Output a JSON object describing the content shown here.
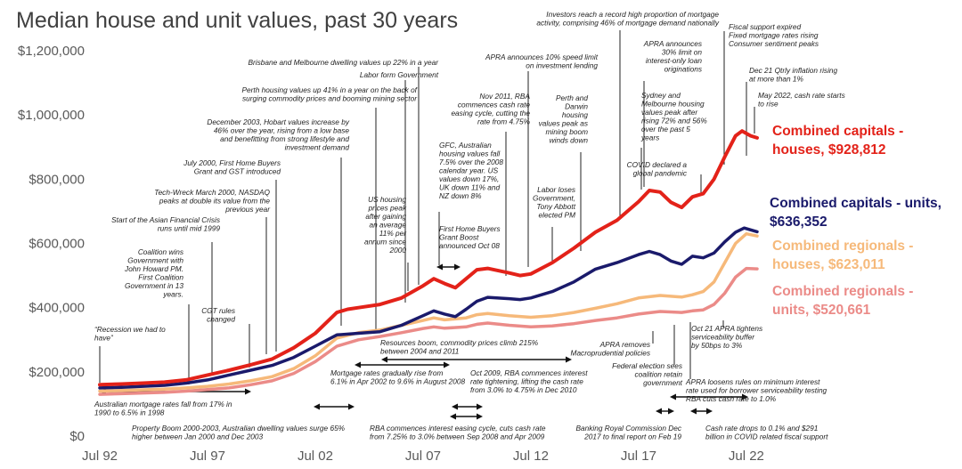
{
  "colors": {
    "houses_capitals": "#e32219",
    "units_capitals": "#1a1a6b",
    "houses_regionals": "#f6b97a",
    "units_regionals": "#eb8b88"
  },
  "chart_data": {
    "type": "line",
    "title": "Median house and unit values, past 30 years",
    "xlabel": "",
    "ylabel": "",
    "xticks": [
      "Jul 92",
      "Jul 97",
      "Jul 02",
      "Jul 07",
      "Jul 12",
      "Jul 17",
      "Jul 22"
    ],
    "yticks": [
      "$0",
      "$200,000",
      "$400,000",
      "$600,000",
      "$800,000",
      "$1,000,000",
      "$1,200,000"
    ],
    "xlim": [
      1992.5,
      2023.0
    ],
    "ylim": [
      0,
      1200000
    ],
    "grid": false,
    "series": [
      {
        "name": "Combined capitals - houses, $928,812",
        "color_key": "houses_capitals",
        "points": [
          [
            1992.5,
            160000
          ],
          [
            1993.5,
            162000
          ],
          [
            1994.5,
            165000
          ],
          [
            1995.5,
            168000
          ],
          [
            1996.5,
            175000
          ],
          [
            1997.5,
            190000
          ],
          [
            1998.5,
            205000
          ],
          [
            1999.5,
            222000
          ],
          [
            2000.5,
            240000
          ],
          [
            2001.5,
            275000
          ],
          [
            2002.5,
            320000
          ],
          [
            2003.5,
            385000
          ],
          [
            2004.0,
            395000
          ],
          [
            2004.5,
            400000
          ],
          [
            2005.5,
            410000
          ],
          [
            2006.5,
            430000
          ],
          [
            2007.5,
            468000
          ],
          [
            2008.0,
            490000
          ],
          [
            2008.5,
            475000
          ],
          [
            2009.0,
            462000
          ],
          [
            2009.5,
            490000
          ],
          [
            2010.0,
            518000
          ],
          [
            2010.5,
            522000
          ],
          [
            2011.5,
            508000
          ],
          [
            2012.0,
            500000
          ],
          [
            2012.5,
            505000
          ],
          [
            2013.5,
            540000
          ],
          [
            2014.5,
            585000
          ],
          [
            2015.5,
            635000
          ],
          [
            2016.5,
            672000
          ],
          [
            2017.5,
            730000
          ],
          [
            2018.0,
            765000
          ],
          [
            2018.5,
            760000
          ],
          [
            2019.0,
            728000
          ],
          [
            2019.5,
            712000
          ],
          [
            2020.0,
            745000
          ],
          [
            2020.5,
            755000
          ],
          [
            2021.0,
            800000
          ],
          [
            2021.5,
            870000
          ],
          [
            2022.0,
            935000
          ],
          [
            2022.3,
            950000
          ],
          [
            2022.7,
            935000
          ],
          [
            2023.0,
            928812
          ]
        ]
      },
      {
        "name": "Combined capitals - units, $636,352",
        "color_key": "units_capitals",
        "points": [
          [
            1992.5,
            150000
          ],
          [
            1993.5,
            152000
          ],
          [
            1994.5,
            155000
          ],
          [
            1995.5,
            158000
          ],
          [
            1996.5,
            165000
          ],
          [
            1997.5,
            175000
          ],
          [
            1998.5,
            190000
          ],
          [
            1999.5,
            205000
          ],
          [
            2000.5,
            220000
          ],
          [
            2001.5,
            245000
          ],
          [
            2002.5,
            280000
          ],
          [
            2003.5,
            315000
          ],
          [
            2004.5,
            320000
          ],
          [
            2005.5,
            325000
          ],
          [
            2006.5,
            345000
          ],
          [
            2007.5,
            375000
          ],
          [
            2008.0,
            390000
          ],
          [
            2008.5,
            380000
          ],
          [
            2009.0,
            372000
          ],
          [
            2009.5,
            395000
          ],
          [
            2010.0,
            420000
          ],
          [
            2010.5,
            432000
          ],
          [
            2011.5,
            428000
          ],
          [
            2012.0,
            425000
          ],
          [
            2012.5,
            430000
          ],
          [
            2013.5,
            450000
          ],
          [
            2014.5,
            480000
          ],
          [
            2015.5,
            520000
          ],
          [
            2016.5,
            540000
          ],
          [
            2017.5,
            565000
          ],
          [
            2018.0,
            575000
          ],
          [
            2018.5,
            565000
          ],
          [
            2019.0,
            545000
          ],
          [
            2019.5,
            535000
          ],
          [
            2020.0,
            560000
          ],
          [
            2020.5,
            555000
          ],
          [
            2021.0,
            570000
          ],
          [
            2021.5,
            605000
          ],
          [
            2022.0,
            635000
          ],
          [
            2022.4,
            648000
          ],
          [
            2023.0,
            636352
          ]
        ]
      },
      {
        "name": "Combined regionals - houses, $623,011",
        "color_key": "houses_regionals",
        "points": [
          [
            1992.5,
            140000
          ],
          [
            1993.5,
            142000
          ],
          [
            1994.5,
            144000
          ],
          [
            1995.5,
            146000
          ],
          [
            1996.5,
            150000
          ],
          [
            1997.5,
            155000
          ],
          [
            1998.5,
            162000
          ],
          [
            1999.5,
            172000
          ],
          [
            2000.5,
            185000
          ],
          [
            2001.5,
            210000
          ],
          [
            2002.5,
            250000
          ],
          [
            2003.5,
            305000
          ],
          [
            2004.5,
            322000
          ],
          [
            2005.5,
            330000
          ],
          [
            2006.5,
            345000
          ],
          [
            2007.5,
            360000
          ],
          [
            2008.0,
            368000
          ],
          [
            2008.5,
            362000
          ],
          [
            2009.5,
            368000
          ],
          [
            2010.0,
            378000
          ],
          [
            2010.5,
            382000
          ],
          [
            2011.5,
            375000
          ],
          [
            2012.5,
            370000
          ],
          [
            2013.5,
            375000
          ],
          [
            2014.5,
            385000
          ],
          [
            2015.5,
            398000
          ],
          [
            2016.5,
            412000
          ],
          [
            2017.5,
            430000
          ],
          [
            2018.5,
            438000
          ],
          [
            2019.5,
            433000
          ],
          [
            2020.0,
            440000
          ],
          [
            2020.5,
            450000
          ],
          [
            2021.0,
            480000
          ],
          [
            2021.5,
            540000
          ],
          [
            2022.0,
            600000
          ],
          [
            2022.5,
            630000
          ],
          [
            2023.0,
            623011
          ]
        ]
      },
      {
        "name": "Combined regionals - units, $520,661",
        "color_key": "units_regionals",
        "points": [
          [
            1992.5,
            130000
          ],
          [
            1993.5,
            132000
          ],
          [
            1994.5,
            134000
          ],
          [
            1995.5,
            136000
          ],
          [
            1996.5,
            140000
          ],
          [
            1997.5,
            145000
          ],
          [
            1998.5,
            150000
          ],
          [
            1999.5,
            160000
          ],
          [
            2000.5,
            172000
          ],
          [
            2001.5,
            195000
          ],
          [
            2002.5,
            232000
          ],
          [
            2003.5,
            280000
          ],
          [
            2004.5,
            300000
          ],
          [
            2005.5,
            310000
          ],
          [
            2006.5,
            322000
          ],
          [
            2007.5,
            335000
          ],
          [
            2008.0,
            340000
          ],
          [
            2008.5,
            336000
          ],
          [
            2009.5,
            340000
          ],
          [
            2010.0,
            348000
          ],
          [
            2010.5,
            352000
          ],
          [
            2011.5,
            345000
          ],
          [
            2012.5,
            340000
          ],
          [
            2013.5,
            343000
          ],
          [
            2014.5,
            350000
          ],
          [
            2015.5,
            360000
          ],
          [
            2016.5,
            368000
          ],
          [
            2017.5,
            380000
          ],
          [
            2018.5,
            388000
          ],
          [
            2019.5,
            385000
          ],
          [
            2020.0,
            390000
          ],
          [
            2020.5,
            393000
          ],
          [
            2021.0,
            410000
          ],
          [
            2021.5,
            445000
          ],
          [
            2022.0,
            495000
          ],
          [
            2022.5,
            522000
          ],
          [
            2023.0,
            520661
          ]
        ]
      }
    ],
    "legend": [
      {
        "lines": [
          "Combined capitals -",
          "houses, $928,812"
        ],
        "color_key": "houses_capitals"
      },
      {
        "lines": [
          "Combined capitals - units,",
          "$636,352"
        ],
        "color_key": "units_capitals"
      },
      {
        "lines": [
          "Combined regionals -",
          "houses, $623,011"
        ],
        "color_key": "houses_regionals"
      },
      {
        "lines": [
          "Combined regionals -",
          "units, $520,661"
        ],
        "color_key": "units_regionals"
      }
    ],
    "annotations": [
      {
        "lines": [
          "“Recession we had to",
          "have”"
        ]
      },
      {
        "lines": [
          "Australian mortgage rates fall from 17% in",
          "1990 to 6.5% in 1998"
        ]
      },
      {
        "lines": [
          "Coalition wins",
          "Government with",
          "John Howard PM.",
          "First Coalition",
          "Government in 13",
          "years."
        ]
      },
      {
        "lines": [
          "Start of the Asian Financial Crisis",
          "runs until mid 1999"
        ]
      },
      {
        "lines": [
          "CGT rules",
          "changed"
        ]
      },
      {
        "lines": [
          "Tech-Wreck March 2000, NASDAQ",
          "peaks at double its value from the",
          "previous year"
        ]
      },
      {
        "lines": [
          "July 2000, First Home Buyers",
          "Grant and GST introduced"
        ]
      },
      {
        "lines": [
          "December 2003, Hobart values increase by",
          "46% over the year, rising from a low base",
          "and benefitting from strong lifestyle and",
          "investment demand"
        ]
      },
      {
        "lines": [
          "Perth housing values up 41% in a year on the back of",
          "surging commodity prices and booming mining sector"
        ]
      },
      {
        "lines": [
          "Labor form Government"
        ]
      },
      {
        "lines": [
          "Brisbane and Melbourne dwelling values up 22% in a year"
        ]
      },
      {
        "lines": [
          "US housing",
          "prices peak",
          "after gaining",
          "an average",
          "11% per",
          "annum since",
          "2000"
        ]
      },
      {
        "lines": [
          "GFC, Australian",
          "housing values fall",
          "7.5% over the 2008",
          "calendar year.  US",
          "values down 17%,",
          "UK down 11% and",
          "NZ down 8%"
        ]
      },
      {
        "lines": [
          "First Home Buyers",
          "Grant Boost",
          "announced Oct 08"
        ]
      },
      {
        "lines": [
          "Nov 2011, RBA",
          "commences cash rate",
          "easing cycle, cutting the",
          "rate from 4.75%"
        ]
      },
      {
        "lines": [
          "APRA announces 10% speed limit",
          "on investment lending"
        ]
      },
      {
        "lines": [
          "Perth and",
          "Darwin",
          "housing",
          "values peak as",
          "mining boom",
          "winds down"
        ]
      },
      {
        "lines": [
          "Labor loses",
          "Government,",
          "Tony Abbott",
          "elected PM"
        ]
      },
      {
        "lines": [
          "Investors reach a record high proportion of mortgage",
          "activity, comprising 46% of mortgage demand nationally"
        ]
      },
      {
        "lines": [
          "APRA announces",
          "30% limit on",
          "interest-only loan",
          "originations"
        ]
      },
      {
        "lines": [
          "Sydney and",
          "Melbourne housing",
          "values peak after",
          "rising 72% and 56%",
          "over the past 5",
          "years"
        ]
      },
      {
        "lines": [
          "COVID declared a",
          "global pandemic"
        ]
      },
      {
        "lines": [
          "Fiscal support expired",
          "Fixed mortgage rates rising",
          "Consumer sentiment peaks"
        ]
      },
      {
        "lines": [
          "Dec 21 Qtrly inflation rising",
          "at more than 1%"
        ]
      },
      {
        "lines": [
          "May 2022, cash rate starts",
          "to rise"
        ]
      },
      {
        "lines": [
          "Resources boom, commodity prices climb 215%",
          "between 2004 and 2011"
        ]
      },
      {
        "lines": [
          "Mortgage rates gradually rise from",
          "6.1% in Apr 2002 to 9.6% in August 2008"
        ]
      },
      {
        "lines": [
          "Oct 2009, RBA commences interest",
          "rate tightening, lifting the cash rate",
          "from 3.0% to 4.75% in Dec 2010"
        ]
      },
      {
        "lines": [
          "APRA removes",
          "Macroprudential policies"
        ]
      },
      {
        "lines": [
          "Federal election sees",
          "coalition retain",
          "government"
        ]
      },
      {
        "lines": [
          "APRA loosens rules on minimum interest",
          "rate used for borrower serviceability testing",
          "RBA cuts cash rate to 1.0%"
        ]
      },
      {
        "lines": [
          "Oct 21 APRA tightens",
          "serviceability buffer",
          "by 50bps to 3%"
        ]
      },
      {
        "lines": [
          "Property Boom 2000-2003, Australian dwelling values surge 65%",
          "higher between Jan 2000 and Dec 2003"
        ]
      },
      {
        "lines": [
          "RBA commences interest easing cycle, cuts cash rate",
          "from 7.25% to 3.0% between Sep 2008 and Apr 2009"
        ]
      },
      {
        "lines": [
          "Banking Royal Commission Dec",
          "2017 to final report on Feb 19"
        ]
      },
      {
        "lines": [
          "Cash rate drops to 0.1% and  $291",
          "billion in COVID related fiscal support"
        ]
      }
    ]
  }
}
